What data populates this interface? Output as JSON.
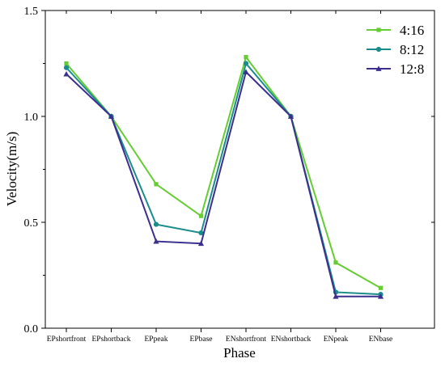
{
  "chart_data": {
    "type": "line",
    "xlabel": "Phase",
    "ylabel": "Velocity(m/s)",
    "categories": [
      "EPshortfront",
      "EPshortback",
      "EPpeak",
      "EPbase",
      "ENshortfront",
      "ENshortback",
      "ENpeak",
      "ENbase"
    ],
    "ylim": [
      0.0,
      1.5
    ],
    "yticks": [
      "0.0",
      "0.5",
      "1.0",
      "1.5"
    ],
    "grid": false,
    "legend_position": "top-right",
    "series": [
      {
        "name": "4:16",
        "color": "#66cc33",
        "marker": "square",
        "values": [
          1.25,
          1.0,
          0.68,
          0.53,
          1.28,
          1.0,
          0.31,
          0.19
        ]
      },
      {
        "name": "8:12",
        "color": "#1a8c8c",
        "marker": "circle",
        "values": [
          1.23,
          1.0,
          0.49,
          0.45,
          1.25,
          1.0,
          0.17,
          0.16
        ]
      },
      {
        "name": "12:8",
        "color": "#3a2f8f",
        "marker": "triangle",
        "values": [
          1.2,
          1.0,
          0.41,
          0.4,
          1.21,
          1.0,
          0.15,
          0.15
        ]
      }
    ]
  }
}
